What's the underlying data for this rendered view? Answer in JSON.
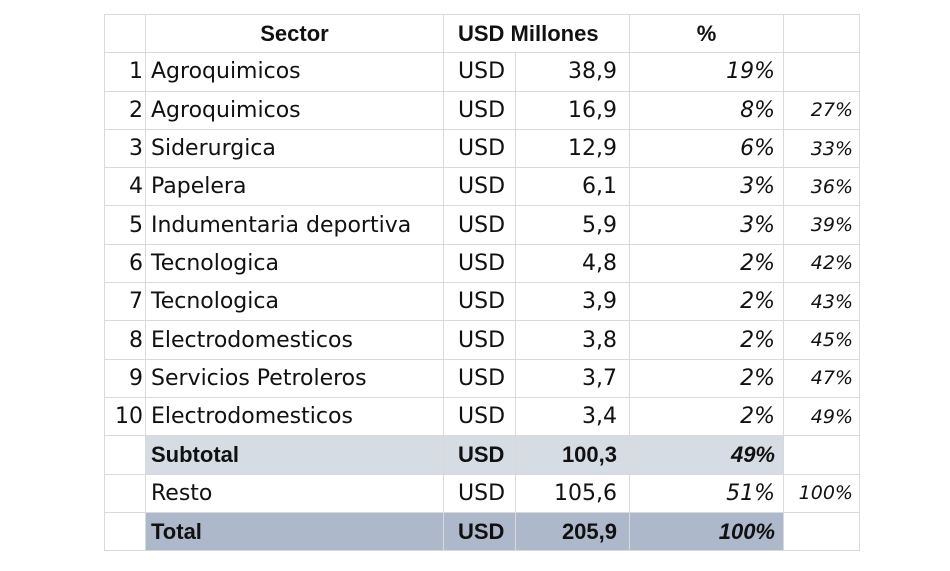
{
  "header": {
    "sector": "Sector",
    "usd_millones": "USD Millones",
    "pct": "%"
  },
  "rows": [
    {
      "num": "1",
      "sector": "Agroquimicos",
      "currency": "USD",
      "value": "38,9",
      "pct": "19%",
      "cum": ""
    },
    {
      "num": "2",
      "sector": "Agroquimicos",
      "currency": "USD",
      "value": "16,9",
      "pct": "8%",
      "cum": "27%"
    },
    {
      "num": "3",
      "sector": "Siderurgica",
      "currency": "USD",
      "value": "12,9",
      "pct": "6%",
      "cum": "33%"
    },
    {
      "num": "4",
      "sector": "Papelera",
      "currency": "USD",
      "value": "6,1",
      "pct": "3%",
      "cum": "36%"
    },
    {
      "num": "5",
      "sector": "Indumentaria deportiva",
      "currency": "USD",
      "value": "5,9",
      "pct": "3%",
      "cum": "39%"
    },
    {
      "num": "6",
      "sector": "Tecnologica",
      "currency": "USD",
      "value": "4,8",
      "pct": "2%",
      "cum": "42%"
    },
    {
      "num": "7",
      "sector": "Tecnologica",
      "currency": "USD",
      "value": "3,9",
      "pct": "2%",
      "cum": "43%"
    },
    {
      "num": "8",
      "sector": "Electrodomesticos",
      "currency": "USD",
      "value": "3,8",
      "pct": "2%",
      "cum": "45%"
    },
    {
      "num": "9",
      "sector": "Servicios Petroleros",
      "currency": "USD",
      "value": "3,7",
      "pct": "2%",
      "cum": "47%"
    },
    {
      "num": "10",
      "sector": "Electrodomesticos",
      "currency": "USD",
      "value": "3,4",
      "pct": "2%",
      "cum": "49%"
    }
  ],
  "subtotal": {
    "label": "Subtotal",
    "currency": "USD",
    "value": "100,3",
    "pct": "49%"
  },
  "resto": {
    "label": "Resto",
    "currency": "USD",
    "value": "105,6",
    "pct": "51%",
    "cum": "100%"
  },
  "total": {
    "label": "Total",
    "currency": "USD",
    "value": "205,9",
    "pct": "100%"
  },
  "colors": {
    "subtotal_fill": "#d6dce4",
    "total_fill": "#adb9ca",
    "grid": "#d9d9d9"
  }
}
